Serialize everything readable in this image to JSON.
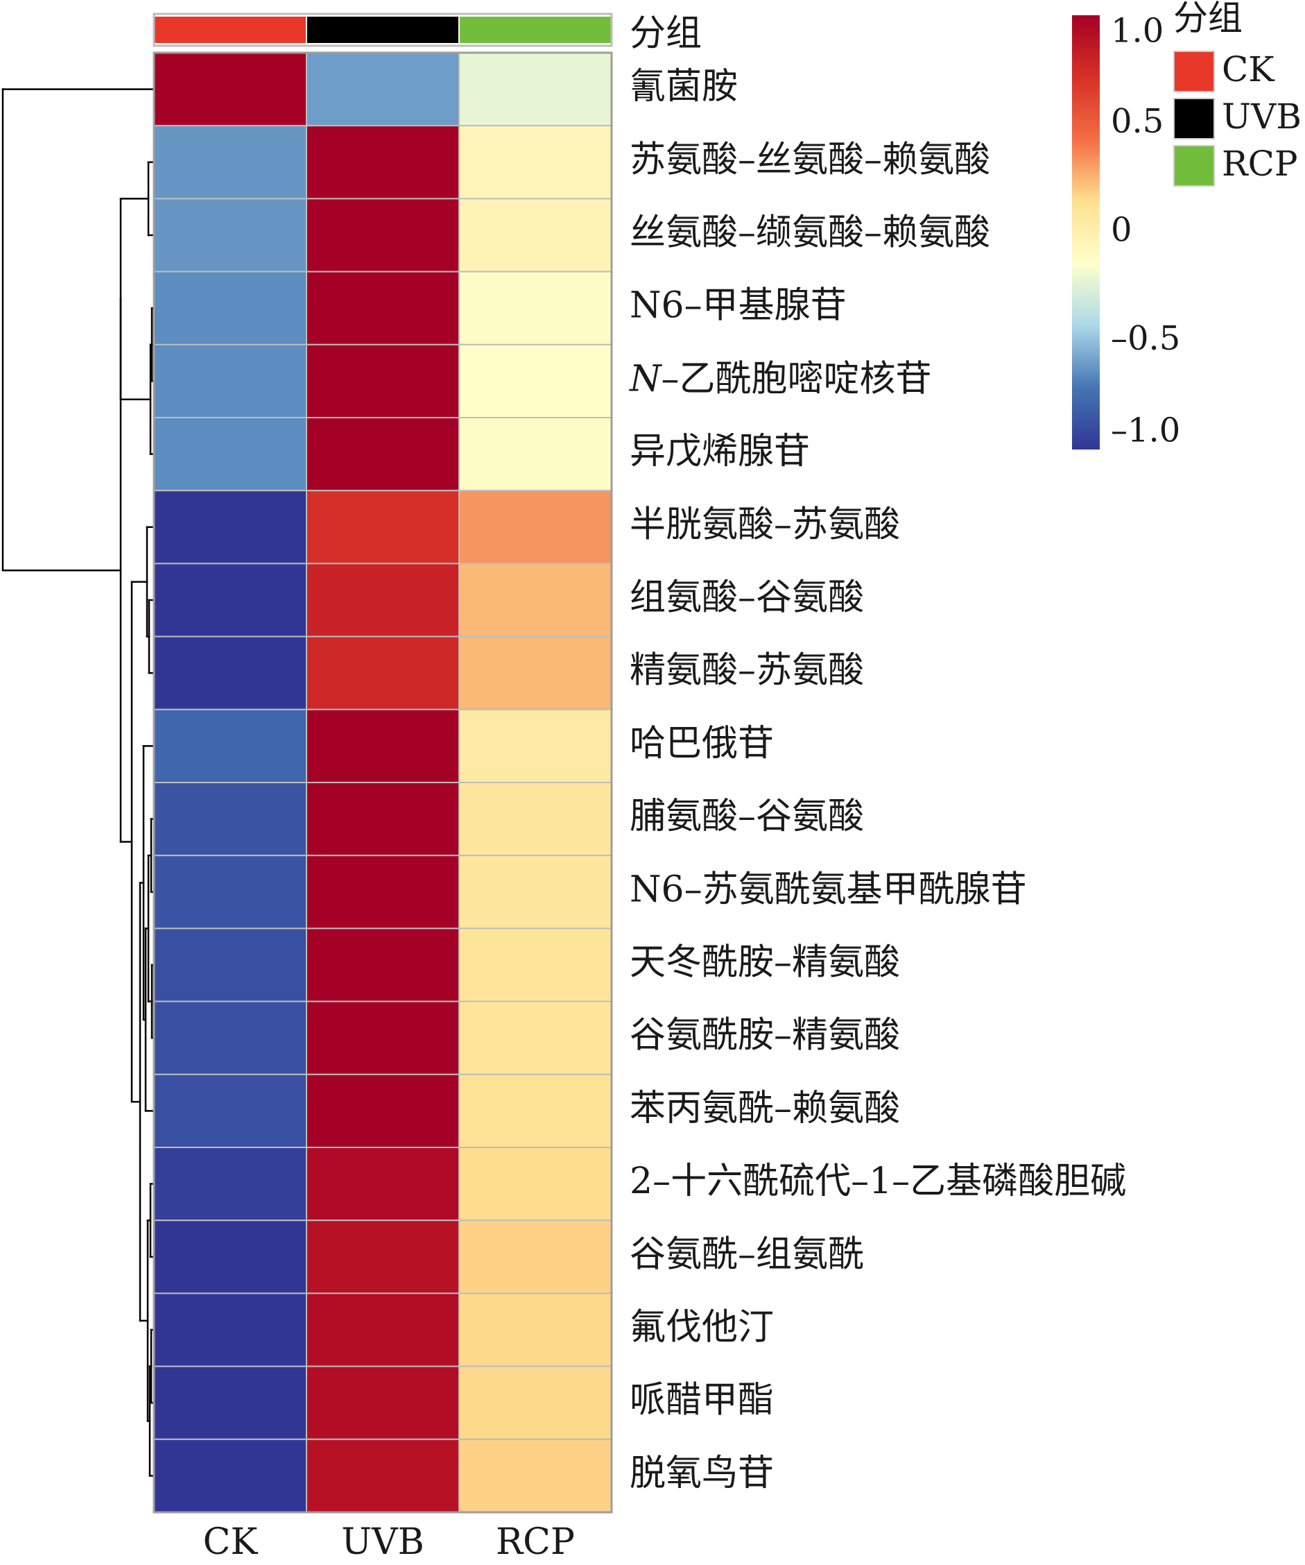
{
  "chart_data": {
    "type": "heatmap",
    "columns": [
      "CK",
      "UVB",
      "RCP"
    ],
    "rows": [
      "氰菌胺",
      "苏氨酸–丝氨酸–赖氨酸",
      "丝氨酸–缬氨酸–赖氨酸",
      "N6–甲基腺苷",
      "N–乙酰胞嘧啶核苷",
      "异戊烯腺苷",
      "半胱氨酸–苏氨酸",
      "组氨酸–谷氨酸",
      "精氨酸–苏氨酸",
      "哈巴俄苷",
      "脯氨酸–谷氨酸",
      "N6–苏氨酰氨基甲酰腺苷",
      "天冬酰胺–精氨酸",
      "谷氨酰胺–精氨酸",
      "苯丙氨酰–赖氨酸",
      "2–十六酰硫代–1–乙基磷酸胆碱",
      "谷氨酰–组氨酰",
      "氟伐他汀",
      "哌醋甲酯",
      "脱氧鸟苷"
    ],
    "values": [
      [
        1.15,
        -0.6,
        -0.22
      ],
      [
        -0.62,
        1.15,
        -0.05
      ],
      [
        -0.62,
        1.15,
        -0.04
      ],
      [
        -0.65,
        1.15,
        -0.12
      ],
      [
        -0.65,
        1.15,
        -0.13
      ],
      [
        -0.65,
        1.15,
        -0.12
      ],
      [
        -1.05,
        0.72,
        0.33
      ],
      [
        -1.08,
        0.8,
        0.24
      ],
      [
        -1.08,
        0.77,
        0.24
      ],
      [
        -0.78,
        1.12,
        0.05
      ],
      [
        -0.86,
        1.05,
        0.08
      ],
      [
        -0.86,
        1.06,
        0.08
      ],
      [
        -0.88,
        1.04,
        0.1
      ],
      [
        -0.88,
        1.04,
        0.1
      ],
      [
        -0.88,
        1.0,
        0.12
      ],
      [
        -0.96,
        0.94,
        0.15
      ],
      [
        -1.0,
        0.9,
        0.18
      ],
      [
        -1.0,
        0.92,
        0.16
      ],
      [
        -1.0,
        0.92,
        0.16
      ],
      [
        -1.02,
        0.9,
        0.18
      ]
    ],
    "color_scale": {
      "min": -1.0,
      "max": 1.0,
      "ticks": [
        "1.0",
        "0.5",
        "0",
        "–0.5",
        "–1.0"
      ],
      "tick_values": [
        1.0,
        0.5,
        0,
        -0.5,
        -1.0
      ],
      "stops": [
        "#313695",
        "#4575b4",
        "#abd9e9",
        "#ffffcc",
        "#fee090",
        "#f46d43",
        "#d73027",
        "#a50026"
      ]
    },
    "group_annotation": {
      "title": "分组",
      "groups": [
        {
          "name": "CK",
          "color": "#e8382a"
        },
        {
          "name": "UVB",
          "color": "#000000"
        },
        {
          "name": "RCP",
          "color": "#72be3a"
        }
      ]
    },
    "italic_prefix_rows": [
      4
    ],
    "row_order_clustered": true
  }
}
